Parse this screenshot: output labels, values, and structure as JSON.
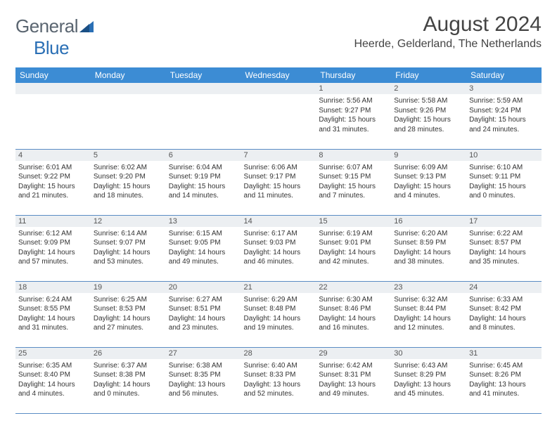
{
  "logo": {
    "part1": "General",
    "part2": "Blue"
  },
  "title": "August 2024",
  "location": "Heerde, Gelderland, The Netherlands",
  "colors": {
    "header_bg": "#3c8cd4",
    "header_text": "#ffffff",
    "daynum_bg": "#eceff2",
    "row_divider": "#5a8cc4",
    "logo_gray": "#5a6570",
    "logo_blue": "#2a6fb5",
    "text": "#333333"
  },
  "weekdays": [
    "Sunday",
    "Monday",
    "Tuesday",
    "Wednesday",
    "Thursday",
    "Friday",
    "Saturday"
  ],
  "weeks": [
    [
      null,
      null,
      null,
      null,
      {
        "n": "1",
        "sunrise": "5:56 AM",
        "sunset": "9:27 PM",
        "daylight": "15 hours and 31 minutes."
      },
      {
        "n": "2",
        "sunrise": "5:58 AM",
        "sunset": "9:26 PM",
        "daylight": "15 hours and 28 minutes."
      },
      {
        "n": "3",
        "sunrise": "5:59 AM",
        "sunset": "9:24 PM",
        "daylight": "15 hours and 24 minutes."
      }
    ],
    [
      {
        "n": "4",
        "sunrise": "6:01 AM",
        "sunset": "9:22 PM",
        "daylight": "15 hours and 21 minutes."
      },
      {
        "n": "5",
        "sunrise": "6:02 AM",
        "sunset": "9:20 PM",
        "daylight": "15 hours and 18 minutes."
      },
      {
        "n": "6",
        "sunrise": "6:04 AM",
        "sunset": "9:19 PM",
        "daylight": "15 hours and 14 minutes."
      },
      {
        "n": "7",
        "sunrise": "6:06 AM",
        "sunset": "9:17 PM",
        "daylight": "15 hours and 11 minutes."
      },
      {
        "n": "8",
        "sunrise": "6:07 AM",
        "sunset": "9:15 PM",
        "daylight": "15 hours and 7 minutes."
      },
      {
        "n": "9",
        "sunrise": "6:09 AM",
        "sunset": "9:13 PM",
        "daylight": "15 hours and 4 minutes."
      },
      {
        "n": "10",
        "sunrise": "6:10 AM",
        "sunset": "9:11 PM",
        "daylight": "15 hours and 0 minutes."
      }
    ],
    [
      {
        "n": "11",
        "sunrise": "6:12 AM",
        "sunset": "9:09 PM",
        "daylight": "14 hours and 57 minutes."
      },
      {
        "n": "12",
        "sunrise": "6:14 AM",
        "sunset": "9:07 PM",
        "daylight": "14 hours and 53 minutes."
      },
      {
        "n": "13",
        "sunrise": "6:15 AM",
        "sunset": "9:05 PM",
        "daylight": "14 hours and 49 minutes."
      },
      {
        "n": "14",
        "sunrise": "6:17 AM",
        "sunset": "9:03 PM",
        "daylight": "14 hours and 46 minutes."
      },
      {
        "n": "15",
        "sunrise": "6:19 AM",
        "sunset": "9:01 PM",
        "daylight": "14 hours and 42 minutes."
      },
      {
        "n": "16",
        "sunrise": "6:20 AM",
        "sunset": "8:59 PM",
        "daylight": "14 hours and 38 minutes."
      },
      {
        "n": "17",
        "sunrise": "6:22 AM",
        "sunset": "8:57 PM",
        "daylight": "14 hours and 35 minutes."
      }
    ],
    [
      {
        "n": "18",
        "sunrise": "6:24 AM",
        "sunset": "8:55 PM",
        "daylight": "14 hours and 31 minutes."
      },
      {
        "n": "19",
        "sunrise": "6:25 AM",
        "sunset": "8:53 PM",
        "daylight": "14 hours and 27 minutes."
      },
      {
        "n": "20",
        "sunrise": "6:27 AM",
        "sunset": "8:51 PM",
        "daylight": "14 hours and 23 minutes."
      },
      {
        "n": "21",
        "sunrise": "6:29 AM",
        "sunset": "8:48 PM",
        "daylight": "14 hours and 19 minutes."
      },
      {
        "n": "22",
        "sunrise": "6:30 AM",
        "sunset": "8:46 PM",
        "daylight": "14 hours and 16 minutes."
      },
      {
        "n": "23",
        "sunrise": "6:32 AM",
        "sunset": "8:44 PM",
        "daylight": "14 hours and 12 minutes."
      },
      {
        "n": "24",
        "sunrise": "6:33 AM",
        "sunset": "8:42 PM",
        "daylight": "14 hours and 8 minutes."
      }
    ],
    [
      {
        "n": "25",
        "sunrise": "6:35 AM",
        "sunset": "8:40 PM",
        "daylight": "14 hours and 4 minutes."
      },
      {
        "n": "26",
        "sunrise": "6:37 AM",
        "sunset": "8:38 PM",
        "daylight": "14 hours and 0 minutes."
      },
      {
        "n": "27",
        "sunrise": "6:38 AM",
        "sunset": "8:35 PM",
        "daylight": "13 hours and 56 minutes."
      },
      {
        "n": "28",
        "sunrise": "6:40 AM",
        "sunset": "8:33 PM",
        "daylight": "13 hours and 52 minutes."
      },
      {
        "n": "29",
        "sunrise": "6:42 AM",
        "sunset": "8:31 PM",
        "daylight": "13 hours and 49 minutes."
      },
      {
        "n": "30",
        "sunrise": "6:43 AM",
        "sunset": "8:29 PM",
        "daylight": "13 hours and 45 minutes."
      },
      {
        "n": "31",
        "sunrise": "6:45 AM",
        "sunset": "8:26 PM",
        "daylight": "13 hours and 41 minutes."
      }
    ]
  ],
  "labels": {
    "sunrise": "Sunrise:",
    "sunset": "Sunset:",
    "daylight": "Daylight:"
  }
}
